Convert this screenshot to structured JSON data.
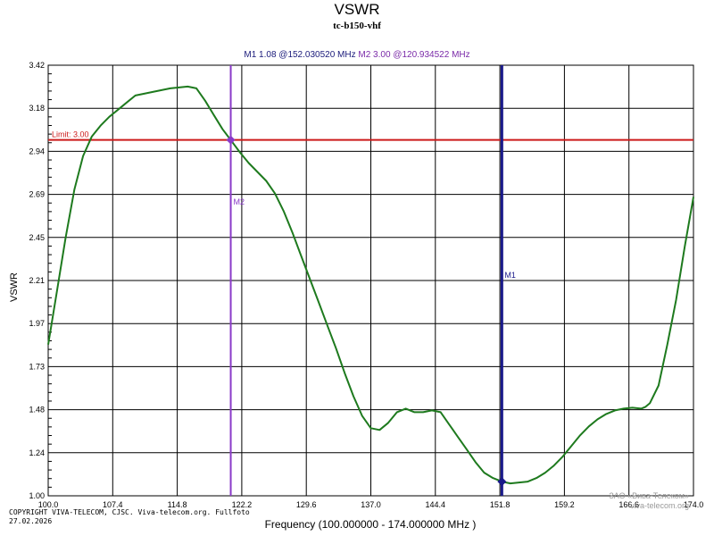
{
  "chart_data": {
    "type": "line",
    "title": "VSWR",
    "subtitle": "tc-b150-vhf",
    "xlabel": "Frequency (100.000000 - 174.000000 MHz )",
    "ylabel": "VSWR",
    "xlim": [
      100.0,
      174.0
    ],
    "ylim": [
      1.0,
      3.42
    ],
    "x_ticks": [
      "100.0",
      "107.4",
      "114.8",
      "122.2",
      "129.6",
      "137.0",
      "144.4",
      "151.8",
      "159.2",
      "166.6",
      "174.0"
    ],
    "y_ticks": [
      "1.00",
      "1.24",
      "1.48",
      "1.73",
      "1.97",
      "2.21",
      "2.45",
      "2.69",
      "2.94",
      "3.18",
      "3.42"
    ],
    "grid": true,
    "series": [
      {
        "color": "#1e7a1e",
        "points": [
          [
            100.0,
            1.85
          ],
          [
            101.0,
            2.15
          ],
          [
            102.0,
            2.45
          ],
          [
            103.0,
            2.72
          ],
          [
            104.0,
            2.91
          ],
          [
            105.0,
            3.02
          ],
          [
            106.0,
            3.08
          ],
          [
            107.0,
            3.13
          ],
          [
            108.0,
            3.17
          ],
          [
            109.0,
            3.21
          ],
          [
            110.0,
            3.25
          ],
          [
            111.0,
            3.26
          ],
          [
            112.0,
            3.27
          ],
          [
            113.0,
            3.28
          ],
          [
            114.0,
            3.29
          ],
          [
            115.0,
            3.295
          ],
          [
            116.0,
            3.3
          ],
          [
            117.0,
            3.29
          ],
          [
            118.0,
            3.22
          ],
          [
            119.0,
            3.14
          ],
          [
            120.0,
            3.06
          ],
          [
            120.934522,
            3.0
          ],
          [
            122.0,
            2.93
          ],
          [
            123.0,
            2.87
          ],
          [
            124.0,
            2.82
          ],
          [
            125.0,
            2.77
          ],
          [
            126.0,
            2.7
          ],
          [
            127.0,
            2.6
          ],
          [
            128.0,
            2.48
          ],
          [
            129.0,
            2.35
          ],
          [
            130.0,
            2.22
          ],
          [
            131.0,
            2.09
          ],
          [
            132.0,
            1.96
          ],
          [
            133.0,
            1.83
          ],
          [
            134.0,
            1.69
          ],
          [
            135.0,
            1.56
          ],
          [
            136.0,
            1.45
          ],
          [
            137.0,
            1.38
          ],
          [
            138.0,
            1.37
          ],
          [
            139.0,
            1.41
          ],
          [
            140.0,
            1.47
          ],
          [
            141.0,
            1.49
          ],
          [
            142.0,
            1.47
          ],
          [
            143.0,
            1.47
          ],
          [
            144.0,
            1.48
          ],
          [
            145.0,
            1.47
          ],
          [
            146.0,
            1.4
          ],
          [
            147.0,
            1.33
          ],
          [
            148.0,
            1.26
          ],
          [
            149.0,
            1.19
          ],
          [
            150.0,
            1.13
          ],
          [
            151.0,
            1.1
          ],
          [
            152.03052,
            1.08
          ],
          [
            153.0,
            1.07
          ],
          [
            154.0,
            1.075
          ],
          [
            155.0,
            1.08
          ],
          [
            156.0,
            1.1
          ],
          [
            157.0,
            1.13
          ],
          [
            158.0,
            1.17
          ],
          [
            159.0,
            1.22
          ],
          [
            160.0,
            1.28
          ],
          [
            161.0,
            1.34
          ],
          [
            162.0,
            1.39
          ],
          [
            163.0,
            1.43
          ],
          [
            164.0,
            1.46
          ],
          [
            165.0,
            1.48
          ],
          [
            166.0,
            1.49
          ],
          [
            167.0,
            1.495
          ],
          [
            168.0,
            1.49
          ],
          [
            168.5,
            1.5
          ],
          [
            169.0,
            1.52
          ],
          [
            170.0,
            1.62
          ],
          [
            171.0,
            1.85
          ],
          [
            172.0,
            2.1
          ],
          [
            173.0,
            2.4
          ],
          [
            174.0,
            2.68
          ]
        ]
      }
    ],
    "limit": {
      "label": "Limit: 3.00",
      "value": 3.0,
      "color": "#cc1a1a"
    },
    "markers": [
      {
        "name": "M1",
        "x": 152.03052,
        "y": 1.08,
        "color": "#1a1a8a"
      },
      {
        "name": "M2",
        "x": 120.934522,
        "y": 3.0,
        "color": "#8a3ac8"
      }
    ]
  },
  "marker_info": {
    "m1": "M1   1.08 @152.030520 MHz",
    "m2": "M2   3.00 @120.934522 MHz"
  },
  "copyright": {
    "line1": "COPYRIGHT VIVA-TELECOM, CJSC. Viva-telecom.org. Fullfoto",
    "line2": "27.02.2026"
  },
  "watermark": {
    "line1": "ЗАО «Вива-Телеком»",
    "line2": "viva-telecom.org"
  }
}
